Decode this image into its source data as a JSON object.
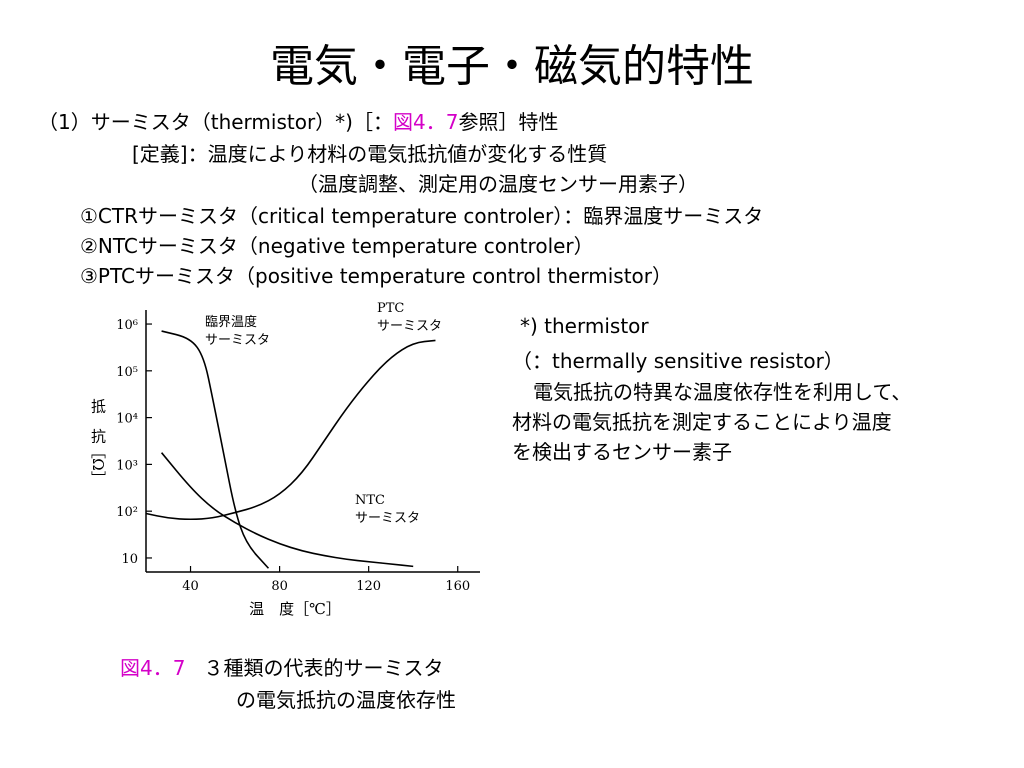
{
  "slide": {
    "title": "電気・電子・磁気的特性",
    "lines": {
      "heading_pre": "（1）サーミスタ（thermistor）*)［：",
      "heading_ref": "図4．7",
      "heading_post": "参照］特性",
      "definition": "[定義]：温度により材料の電気抵抗値が変化する性質",
      "definition_sub": "（温度調整、測定用の温度センサー用素子）",
      "ctr": "①CTRサーミスタ（critical temperature controler）：臨界温度サーミスタ",
      "ntc": "②NTCサーミスタ（negative temperature controler）",
      "ptc": "③PTCサーミスタ（positive temperature control thermistor）"
    },
    "footnote": {
      "head": "*) thermistor",
      "expand": "（：thermally sensitive resistor）",
      "body1": "電気抵抗の特異な温度依存性を利用して、",
      "body2": "材料の電気抵抗を測定することにより温度",
      "body3": "を検出するセンサー素子"
    },
    "caption": {
      "ref": "図4．7",
      "text1": "３種類の代表的サーミスタ",
      "text2": "の電気抵抗の温度依存性"
    }
  },
  "chart_data": {
    "type": "line",
    "xlabel": "温　度［℃］",
    "ylabel": "抵　抗［Ω］",
    "x_ticks": [
      "40",
      "80",
      "120",
      "160"
    ],
    "y_ticks": [
      "10",
      "10²",
      "10³",
      "10⁴",
      "10⁵",
      "10⁶"
    ],
    "xlim": [
      20,
      170
    ],
    "ylim_log10": [
      0.7,
      6.3
    ],
    "series": [
      {
        "name": "臨界温度\nサーミスタ",
        "points": [
          [
            27,
            5.85
          ],
          [
            40,
            5.7
          ],
          [
            46,
            5.3
          ],
          [
            50,
            4.4
          ],
          [
            55,
            3.2
          ],
          [
            60,
            2.0
          ],
          [
            65,
            1.3
          ],
          [
            75,
            0.78
          ]
        ]
      },
      {
        "name": "PTC\nサーミスタ",
        "points": [
          [
            20,
            1.95
          ],
          [
            30,
            1.85
          ],
          [
            40,
            1.82
          ],
          [
            50,
            1.85
          ],
          [
            60,
            1.97
          ],
          [
            70,
            2.1
          ],
          [
            80,
            2.35
          ],
          [
            90,
            2.8
          ],
          [
            100,
            3.5
          ],
          [
            110,
            4.2
          ],
          [
            120,
            4.8
          ],
          [
            130,
            5.3
          ],
          [
            140,
            5.6
          ],
          [
            150,
            5.65
          ]
        ]
      },
      {
        "name": "NTC\nサーミスタ",
        "points": [
          [
            27,
            3.25
          ],
          [
            40,
            2.5
          ],
          [
            50,
            2.05
          ],
          [
            60,
            1.75
          ],
          [
            70,
            1.5
          ],
          [
            80,
            1.3
          ],
          [
            90,
            1.15
          ],
          [
            100,
            1.05
          ],
          [
            110,
            0.97
          ],
          [
            120,
            0.92
          ],
          [
            130,
            0.87
          ],
          [
            140,
            0.82
          ]
        ]
      }
    ]
  }
}
